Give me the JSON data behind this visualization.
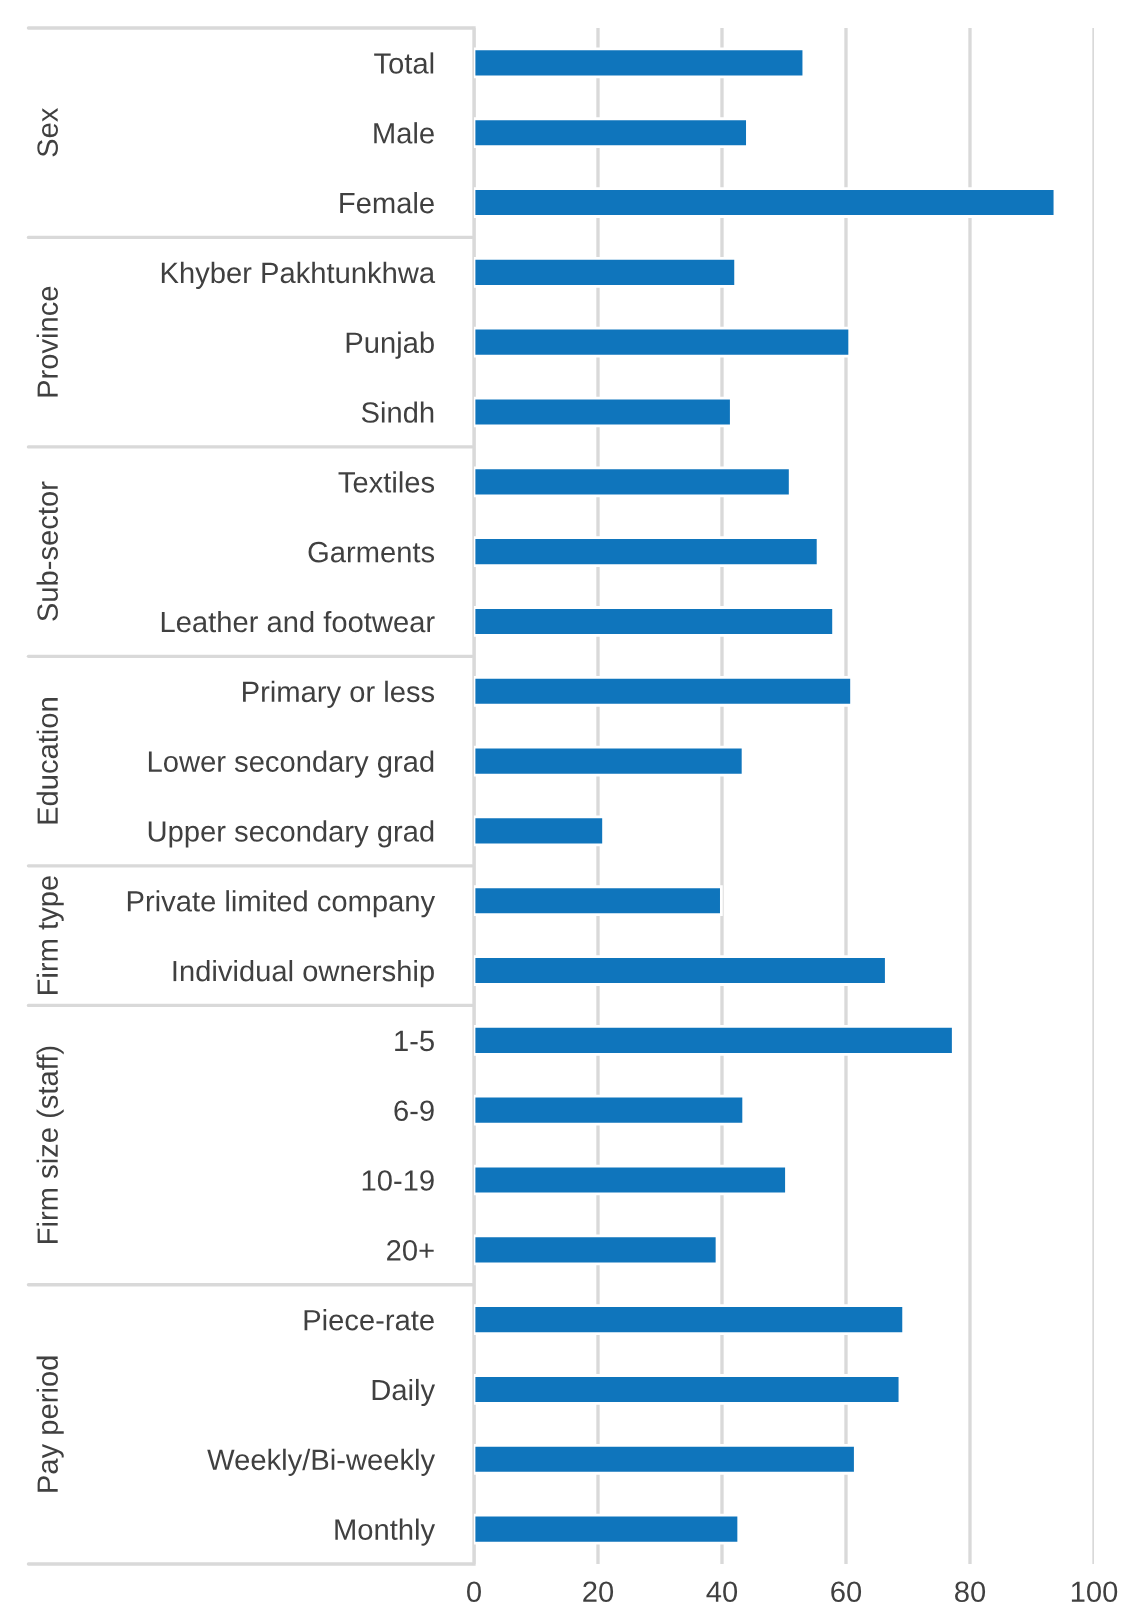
{
  "chart_data": {
    "type": "bar",
    "orientation": "horizontal",
    "color": "#0f75bc",
    "categories": [
      "Total",
      "Male",
      "Female",
      "Khyber Pakhtunkhwa",
      "Punjab",
      "Sindh",
      "Textiles",
      "Garments",
      "Leather and footwear",
      "Primary or less",
      "Lower secondary grad",
      "Upper secondary grad",
      "Private limited company",
      "Individual ownership",
      "1-5",
      "6-9",
      "10-19",
      "20+",
      "Piece-rate",
      "Daily",
      "Weekly/Bi-weekly",
      "Monthly"
    ],
    "values": [
      53.2,
      44.1,
      93.7,
      42.2,
      60.6,
      41.5,
      51.0,
      55.5,
      58.0,
      60.9,
      43.4,
      20.9,
      39.9,
      66.5,
      77.3,
      43.5,
      50.4,
      39.2,
      69.3,
      68.7,
      61.5,
      42.7
    ],
    "xlim": [
      0,
      100
    ],
    "xticks": [
      0,
      20,
      40,
      60,
      80,
      100
    ],
    "grid": "x",
    "annotations": [
      "Sex",
      "Province",
      "Sub-sector",
      "Education",
      "Firm type",
      "Firm size (staff)",
      "Pay period"
    ]
  }
}
